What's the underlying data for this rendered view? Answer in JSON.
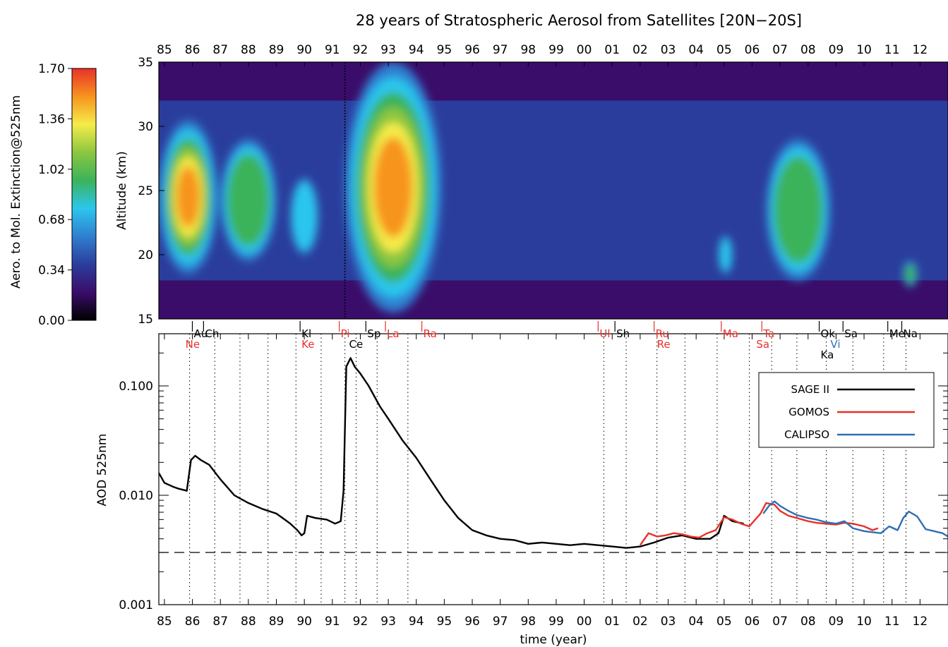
{
  "chart_data": [
    {
      "type": "heatmap",
      "title": "28 years of Stratospheric Aerosol from Satellites [20N−20S]",
      "ylabel": "Altitude (km)",
      "ylim": [
        15,
        35
      ],
      "yticks": [
        "15",
        "20",
        "25",
        "30",
        "35"
      ],
      "x_tick_labels": [
        "85",
        "86",
        "87",
        "88",
        "89",
        "90",
        "91",
        "92",
        "93",
        "94",
        "95",
        "96",
        "97",
        "98",
        "99",
        "00",
        "01",
        "02",
        "03",
        "04",
        "05",
        "06",
        "07",
        "08",
        "09",
        "10",
        "11",
        "12"
      ],
      "x_range_years": [
        1984.8,
        2013.0
      ],
      "colorbar": {
        "label": "Aero. to Mol. Extinction@525nm",
        "ticks": [
          "0.00",
          "0.34",
          "0.68",
          "1.02",
          "1.36",
          "1.70"
        ],
        "range": [
          0,
          1.7
        ],
        "colors": [
          "#000000",
          "#3a0d6a",
          "#2b3d9c",
          "#2f7fd0",
          "#2cc6ee",
          "#3bb35a",
          "#8cc63f",
          "#f5ec4a",
          "#f7941d",
          "#e8312a"
        ]
      },
      "features": [
        {
          "start": 1984.8,
          "end": 1986.9,
          "bottom": 18.5,
          "top": 30.5,
          "peak": 1.65
        },
        {
          "start": 1987.0,
          "end": 1989.0,
          "bottom": 19.5,
          "top": 29.0,
          "peak": 0.95
        },
        {
          "start": 1989.5,
          "end": 1990.5,
          "bottom": 20.0,
          "top": 26.0,
          "peak": 0.9
        },
        {
          "start": 1991.45,
          "end": 1994.9,
          "bottom": 15.5,
          "top": 35.0,
          "peak": 1.9
        },
        {
          "start": 2006.5,
          "end": 2008.8,
          "bottom": 18.0,
          "top": 29.0,
          "peak": 0.95
        },
        {
          "start": 2004.8,
          "end": 2005.3,
          "bottom": 18.5,
          "top": 21.5,
          "peak": 0.9
        },
        {
          "start": 2011.4,
          "end": 2011.9,
          "bottom": 17.5,
          "top": 19.5,
          "peak": 1.0
        }
      ]
    },
    {
      "type": "line",
      "xlabel": "time (year)",
      "ylabel": "AOD 525nm",
      "yscale": "log",
      "ylim": [
        0.001,
        0.3
      ],
      "yticks": [
        "0.001",
        "0.010",
        "0.100"
      ],
      "x_tick_labels": [
        "85",
        "86",
        "87",
        "88",
        "89",
        "90",
        "91",
        "92",
        "93",
        "94",
        "95",
        "96",
        "97",
        "98",
        "99",
        "00",
        "01",
        "02",
        "03",
        "04",
        "05",
        "06",
        "07",
        "08",
        "09",
        "10",
        "11",
        "12"
      ],
      "background_level": 0.003,
      "volcano_lines": [
        1985.9,
        1986.8,
        1987.7,
        1988.7,
        1989.7,
        1990.6,
        1991.45,
        1991.85,
        1992.6,
        1993.7,
        2000.7,
        2001.5,
        2002.6,
        2003.6,
        2004.75,
        2005.9,
        2006.7,
        2007.6,
        2008.65,
        2009.6,
        2010.7,
        2011.5
      ],
      "volcanoes": [
        {
          "name": "Ne",
          "year": 1985.9,
          "color": "#e8312a",
          "row": 1
        },
        {
          "name": "Au",
          "year": 1986.2,
          "color": "#000000",
          "row": 0
        },
        {
          "name": "Ch",
          "year": 1986.6,
          "color": "#000000",
          "row": 0
        },
        {
          "name": "Kl",
          "year": 1990.05,
          "color": "#000000",
          "row": 0
        },
        {
          "name": "Ke",
          "year": 1990.05,
          "color": "#e8312a",
          "row": 1
        },
        {
          "name": "Pi",
          "year": 1991.45,
          "color": "#e8312a",
          "row": 0
        },
        {
          "name": "Ce",
          "year": 1991.75,
          "color": "#000000",
          "row": 1
        },
        {
          "name": "Sp",
          "year": 1992.4,
          "color": "#000000",
          "row": 0
        },
        {
          "name": "La",
          "year": 1993.1,
          "color": "#e8312a",
          "row": 0
        },
        {
          "name": "Ra",
          "year": 1994.4,
          "color": "#e8312a",
          "row": 0
        },
        {
          "name": "Ul",
          "year": 2000.7,
          "color": "#e8312a",
          "row": 0
        },
        {
          "name": "Sh",
          "year": 2001.3,
          "color": "#000000",
          "row": 0
        },
        {
          "name": "Ru",
          "year": 2002.7,
          "color": "#e8312a",
          "row": 0
        },
        {
          "name": "Re",
          "year": 2002.75,
          "color": "#e8312a",
          "row": 1
        },
        {
          "name": "Ma",
          "year": 2005.1,
          "color": "#e8312a",
          "row": 0
        },
        {
          "name": "Sa",
          "year": 2006.3,
          "color": "#e8312a",
          "row": 1
        },
        {
          "name": "Ta",
          "year": 2006.55,
          "color": "#e8312a",
          "row": 0
        },
        {
          "name": "Ok",
          "year": 2008.6,
          "color": "#000000",
          "row": 0
        },
        {
          "name": "Ka",
          "year": 2008.6,
          "color": "#000000",
          "row": 2
        },
        {
          "name": "Vi",
          "year": 2008.95,
          "color": "#2f6fb3",
          "row": 1
        },
        {
          "name": "Sa",
          "year": 2009.45,
          "color": "#000000",
          "row": 0
        },
        {
          "name": "Me",
          "year": 2011.05,
          "color": "#000000",
          "row": 0
        },
        {
          "name": "Na",
          "year": 2011.55,
          "color": "#000000",
          "row": 0
        }
      ],
      "legend_position": "top-right",
      "series": [
        {
          "name": "SAGE II",
          "color": "#000000",
          "x": [
            1984.8,
            1985.0,
            1985.3,
            1985.5,
            1985.8,
            1985.95,
            1986.1,
            1986.3,
            1986.6,
            1987.0,
            1987.5,
            1988.0,
            1988.5,
            1989.0,
            1989.3,
            1989.5,
            1989.75,
            1989.9,
            1990.0,
            1990.1,
            1990.4,
            1990.8,
            1991.1,
            1991.3,
            1991.4,
            1991.5,
            1991.65,
            1991.8,
            1992.0,
            1992.3,
            1992.7,
            1993.0,
            1993.5,
            1994.0,
            1994.5,
            1995.0,
            1995.5,
            1996.0,
            1996.5,
            1997.0,
            1997.5,
            1998.0,
            1998.5,
            1999.0,
            1999.5,
            2000.0,
            2000.5,
            2001.0,
            2001.5,
            2002.0,
            2002.5,
            2003.0,
            2003.5,
            2004.0,
            2004.5,
            2004.8,
            2005.0,
            2005.3,
            2005.7
          ],
          "values": [
            0.016,
            0.013,
            0.012,
            0.0115,
            0.011,
            0.021,
            0.023,
            0.021,
            0.019,
            0.014,
            0.01,
            0.0085,
            0.0075,
            0.0068,
            0.006,
            0.0055,
            0.0048,
            0.0043,
            0.0045,
            0.0065,
            0.0062,
            0.006,
            0.0055,
            0.0058,
            0.011,
            0.15,
            0.18,
            0.15,
            0.13,
            0.1,
            0.065,
            0.05,
            0.032,
            0.022,
            0.014,
            0.009,
            0.0062,
            0.0048,
            0.0043,
            0.004,
            0.0039,
            0.0036,
            0.0037,
            0.0036,
            0.0035,
            0.0036,
            0.0035,
            0.0034,
            0.0033,
            0.0034,
            0.0037,
            0.0041,
            0.0043,
            0.004,
            0.004,
            0.0045,
            0.0065,
            0.0058,
            0.0055
          ]
        },
        {
          "name": "GOMOS",
          "color": "#e8312a",
          "x": [
            2002.0,
            2002.3,
            2002.6,
            2002.9,
            2003.2,
            2003.5,
            2003.8,
            2004.1,
            2004.4,
            2004.7,
            2005.0,
            2005.3,
            2005.6,
            2005.9,
            2006.3,
            2006.5,
            2006.8,
            2007.0,
            2007.3,
            2007.6,
            2008.0,
            2008.3,
            2008.6,
            2009.0,
            2009.3,
            2009.6,
            2010.0,
            2010.3,
            2010.5
          ],
          "values": [
            0.0035,
            0.0045,
            0.0042,
            0.0043,
            0.0045,
            0.0044,
            0.0042,
            0.0041,
            0.0045,
            0.0048,
            0.0063,
            0.006,
            0.0055,
            0.0052,
            0.0068,
            0.0085,
            0.0082,
            0.0072,
            0.0065,
            0.0062,
            0.0058,
            0.0056,
            0.0055,
            0.0054,
            0.0056,
            0.0055,
            0.0052,
            0.0048,
            0.005
          ]
        },
        {
          "name": "CALIPSO",
          "color": "#2f6fb3",
          "x": [
            2006.4,
            2006.6,
            2006.8,
            2007.0,
            2007.3,
            2007.6,
            2008.0,
            2008.3,
            2008.6,
            2009.0,
            2009.3,
            2009.6,
            2010.0,
            2010.3,
            2010.6,
            2010.9,
            2011.2,
            2011.4,
            2011.6,
            2011.9,
            2012.2,
            2012.5,
            2012.8,
            2013.0
          ],
          "values": [
            0.0068,
            0.008,
            0.0088,
            0.008,
            0.0072,
            0.0066,
            0.0062,
            0.006,
            0.0057,
            0.0055,
            0.0058,
            0.005,
            0.0047,
            0.0046,
            0.0045,
            0.0052,
            0.0048,
            0.0062,
            0.0071,
            0.0064,
            0.0049,
            0.0047,
            0.0045,
            0.0042
          ]
        }
      ]
    }
  ]
}
